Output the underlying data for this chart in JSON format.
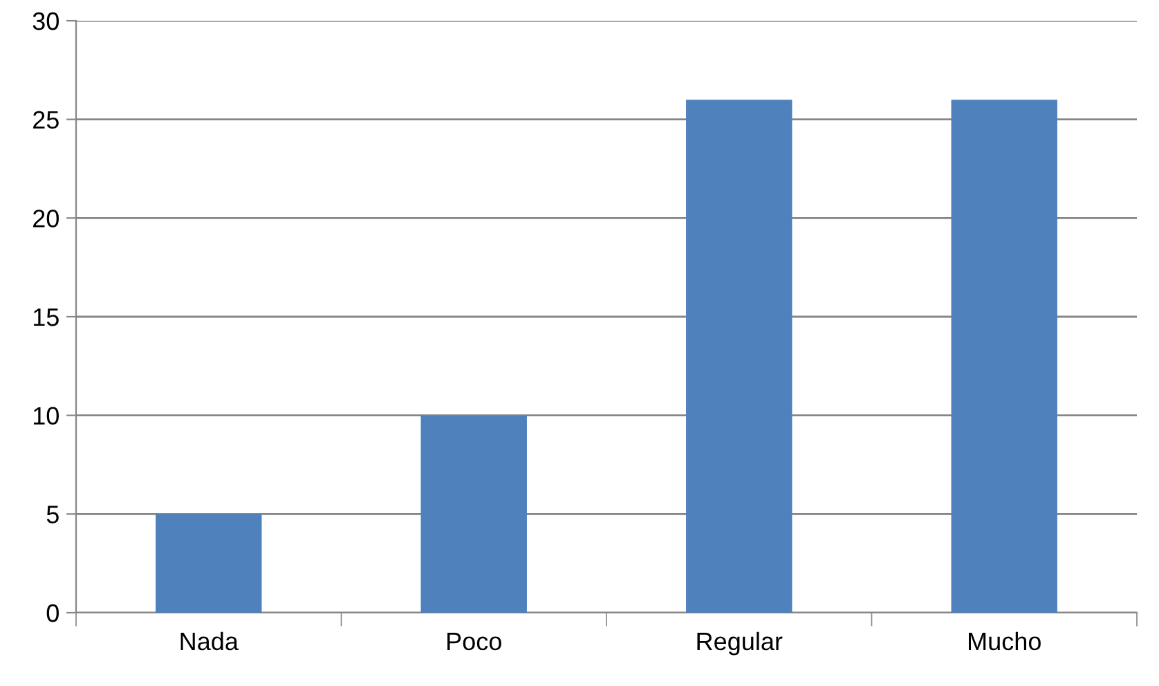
{
  "chart_data": {
    "type": "bar",
    "categories": [
      "Nada",
      "Poco",
      "Regular",
      "Mucho"
    ],
    "values": [
      5,
      10,
      26,
      26
    ],
    "color": "#4f81bd",
    "ylim": [
      0,
      30
    ],
    "yticks": [
      0,
      5,
      10,
      15,
      20,
      25,
      30
    ],
    "grid": "y"
  }
}
